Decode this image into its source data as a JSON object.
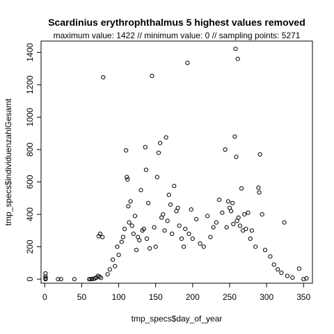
{
  "chart_data": {
    "type": "scatter",
    "title": "Scardinius erythrophthalmus  5 highest values removed",
    "subtitle": "maximum value: 1422  //  minimum value: 0  // sampling points: 5271",
    "xlabel": "tmp_specs$day_of_year",
    "ylabel": "tmp_specs$individuenzahlGesamt",
    "xlim": [
      -5,
      362
    ],
    "ylim": [
      -25,
      1470
    ],
    "xticks": [
      0,
      50,
      100,
      150,
      200,
      250,
      300,
      350
    ],
    "yticks": [
      0,
      200,
      400,
      600,
      800,
      1000,
      1200,
      1400
    ],
    "grid": false,
    "legend": "none",
    "series": [
      {
        "points": [
          [
            1,
            0
          ],
          [
            1,
            5
          ],
          [
            1,
            15
          ],
          [
            1,
            35
          ],
          [
            18,
            0
          ],
          [
            22,
            0
          ],
          [
            40,
            0
          ],
          [
            60,
            0
          ],
          [
            62,
            0
          ],
          [
            64,
            1
          ],
          [
            66,
            2
          ],
          [
            68,
            5
          ],
          [
            70,
            10
          ],
          [
            72,
            20
          ],
          [
            74,
            15
          ],
          [
            76,
            8
          ],
          [
            73,
            265
          ],
          [
            75,
            280
          ],
          [
            78,
            260
          ],
          [
            79,
            1246
          ],
          [
            85,
            30
          ],
          [
            88,
            60
          ],
          [
            92,
            120
          ],
          [
            95,
            80
          ],
          [
            98,
            200
          ],
          [
            100,
            150
          ],
          [
            104,
            230
          ],
          [
            106,
            260
          ],
          [
            108,
            310
          ],
          [
            110,
            795
          ],
          [
            111,
            630
          ],
          [
            112,
            615
          ],
          [
            113,
            450
          ],
          [
            114,
            350
          ],
          [
            116,
            480
          ],
          [
            118,
            330
          ],
          [
            120,
            280
          ],
          [
            122,
            390
          ],
          [
            124,
            180
          ],
          [
            126,
            260
          ],
          [
            128,
            240
          ],
          [
            130,
            550
          ],
          [
            132,
            300
          ],
          [
            134,
            310
          ],
          [
            136,
            815
          ],
          [
            137,
            675
          ],
          [
            138,
            250
          ],
          [
            140,
            470
          ],
          [
            142,
            190
          ],
          [
            145,
            1255
          ],
          [
            148,
            320
          ],
          [
            150,
            200
          ],
          [
            152,
            630
          ],
          [
            154,
            780
          ],
          [
            156,
            840
          ],
          [
            158,
            380
          ],
          [
            160,
            400
          ],
          [
            162,
            300
          ],
          [
            164,
            875
          ],
          [
            166,
            360
          ],
          [
            168,
            520
          ],
          [
            170,
            460
          ],
          [
            172,
            280
          ],
          [
            175,
            575
          ],
          [
            178,
            420
          ],
          [
            180,
            440
          ],
          [
            182,
            330
          ],
          [
            185,
            250
          ],
          [
            188,
            200
          ],
          [
            190,
            310
          ],
          [
            193,
            1335
          ],
          [
            195,
            280
          ],
          [
            198,
            430
          ],
          [
            200,
            250
          ],
          [
            205,
            370
          ],
          [
            210,
            220
          ],
          [
            215,
            200
          ],
          [
            220,
            390
          ],
          [
            224,
            260
          ],
          [
            228,
            320
          ],
          [
            232,
            350
          ],
          [
            236,
            490
          ],
          [
            240,
            410
          ],
          [
            244,
            800
          ],
          [
            246,
            320
          ],
          [
            248,
            480
          ],
          [
            250,
            440
          ],
          [
            252,
            420
          ],
          [
            254,
            470
          ],
          [
            255,
            340
          ],
          [
            257,
            880
          ],
          [
            258,
            1422
          ],
          [
            259,
            755
          ],
          [
            260,
            360
          ],
          [
            261,
            1360
          ],
          [
            262,
            380
          ],
          [
            264,
            330
          ],
          [
            266,
            560
          ],
          [
            268,
            300
          ],
          [
            270,
            400
          ],
          [
            272,
            310
          ],
          [
            275,
            410
          ],
          [
            278,
            250
          ],
          [
            280,
            300
          ],
          [
            285,
            200
          ],
          [
            289,
            565
          ],
          [
            290,
            535
          ],
          [
            291,
            770
          ],
          [
            294,
            400
          ],
          [
            298,
            180
          ],
          [
            305,
            140
          ],
          [
            310,
            90
          ],
          [
            315,
            60
          ],
          [
            320,
            40
          ],
          [
            324,
            350
          ],
          [
            328,
            20
          ],
          [
            335,
            10
          ],
          [
            344,
            65
          ],
          [
            350,
            0
          ],
          [
            354,
            5
          ]
        ]
      }
    ]
  }
}
